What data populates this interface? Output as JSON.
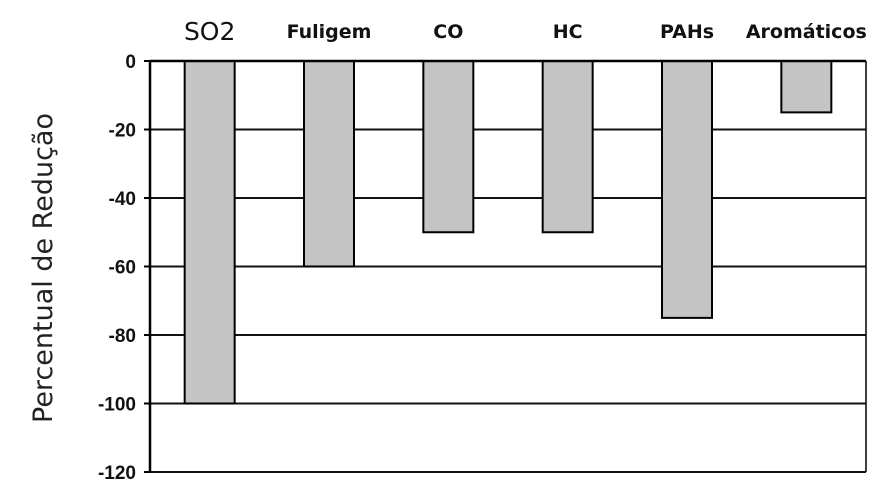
{
  "chart_data": {
    "type": "bar",
    "categories": [
      "SO2",
      "Fuligem",
      "CO",
      "HC",
      "PAHs",
      "Aromáticos"
    ],
    "values": [
      -100,
      -60,
      -50,
      -50,
      -75,
      -15
    ],
    "title": "",
    "xlabel": "",
    "ylabel": "Percentual de Redução",
    "ylim": [
      -120,
      0
    ],
    "yticks": [
      0,
      -20,
      -40,
      -60,
      -80,
      -100,
      -120
    ],
    "grid": true,
    "legend": "none",
    "x_axis_position": "top",
    "colors": {
      "bar_fill": "#c4c4c4",
      "bar_stroke": "#000000",
      "grid": "#111111",
      "text": "#111111"
    }
  }
}
